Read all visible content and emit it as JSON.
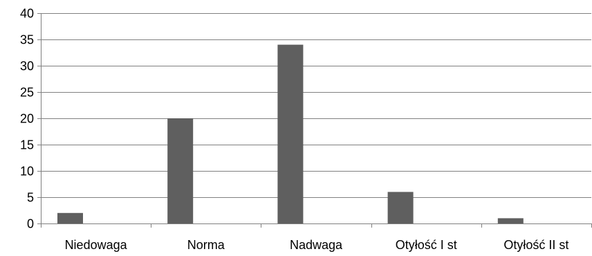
{
  "chart_data": {
    "type": "bar",
    "categories": [
      "Niedowaga",
      "Norma",
      "Nadwaga",
      "Otyłość I st",
      "Otyłość II st"
    ],
    "values": [
      2,
      20,
      34,
      6,
      1
    ],
    "title": "",
    "xlabel": "",
    "ylabel": "",
    "ylim": [
      0,
      40
    ],
    "yticks": [
      0,
      5,
      10,
      15,
      20,
      25,
      30,
      35,
      40
    ],
    "ytick_labels": [
      "0",
      "5",
      "10",
      "15",
      "20",
      "25",
      "30",
      "35",
      "40"
    ],
    "grid": true,
    "legend": "none",
    "bar_color": "#5f5f5f",
    "grid_color": "#808080",
    "axis_color": "#808080"
  }
}
